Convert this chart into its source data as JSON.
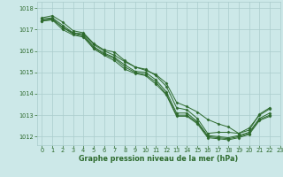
{
  "title": "Graphe pression niveau de la mer (hPa)",
  "background_color": "#cce8e8",
  "grid_color": "#aacccc",
  "line_color": "#2d6a2d",
  "tick_color": "#2d6a2d",
  "xlim": [
    -0.5,
    23
  ],
  "ylim": [
    1011.6,
    1018.3
  ],
  "yticks": [
    1012,
    1013,
    1014,
    1015,
    1016,
    1017,
    1018
  ],
  "xticks": [
    0,
    1,
    2,
    3,
    4,
    5,
    6,
    7,
    8,
    9,
    10,
    11,
    12,
    13,
    14,
    15,
    16,
    17,
    18,
    19,
    20,
    21,
    22,
    23
  ],
  "series": [
    [
      1017.55,
      1017.65,
      1017.35,
      1016.95,
      1016.85,
      1016.35,
      1016.05,
      1015.95,
      1015.55,
      1015.25,
      1015.15,
      1014.85,
      1014.35,
      1013.35,
      1013.25,
      1012.85,
      1012.15,
      1012.2,
      1012.2,
      1012.15,
      1012.3,
      1013.05,
      1013.35
    ],
    [
      1017.5,
      1017.55,
      1017.2,
      1016.85,
      1016.75,
      1016.2,
      1015.9,
      1015.7,
      1015.35,
      1015.05,
      1015.0,
      1014.65,
      1014.1,
      1013.1,
      1013.1,
      1012.7,
      1012.05,
      1012.0,
      1011.95,
      1012.05,
      1012.2,
      1012.85,
      1013.1
    ],
    [
      1017.45,
      1017.5,
      1017.1,
      1016.8,
      1016.7,
      1016.15,
      1015.85,
      1015.65,
      1015.25,
      1015.0,
      1014.9,
      1014.55,
      1014.0,
      1013.0,
      1013.0,
      1012.65,
      1012.0,
      1011.95,
      1011.9,
      1012.0,
      1012.15,
      1012.8,
      1013.0
    ],
    [
      1017.4,
      1017.45,
      1017.0,
      1016.75,
      1016.65,
      1016.1,
      1015.8,
      1015.55,
      1015.15,
      1014.95,
      1014.85,
      1014.45,
      1013.95,
      1012.95,
      1012.95,
      1012.6,
      1011.95,
      1011.9,
      1011.85,
      1011.95,
      1012.1,
      1012.75,
      1012.95
    ],
    [
      1017.4,
      1017.5,
      1017.1,
      1016.85,
      1016.8,
      1016.3,
      1016.0,
      1015.8,
      1015.5,
      1015.25,
      1015.1,
      1014.9,
      1014.5,
      1013.6,
      1013.4,
      1013.15,
      1012.8,
      1012.6,
      1012.45,
      1012.15,
      1012.4,
      1013.0,
      1013.3
    ]
  ],
  "title_fontsize": 5.8,
  "tick_fontsize": 4.8,
  "linewidth": 0.7,
  "markersize": 1.6
}
